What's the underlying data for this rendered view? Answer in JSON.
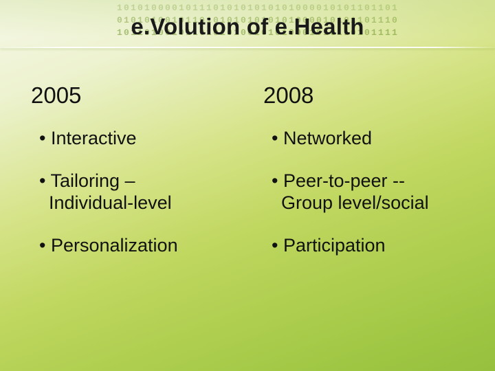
{
  "title": "e.Volution of e.Health",
  "binary": {
    "line1": "10101000010111010101010101000010101101101",
    "line2": "01010100101101010101010101000010101101110",
    "line3": "10110100101101010100101010001010110101111"
  },
  "left": {
    "year": "2005",
    "b1": "Interactive",
    "b2a": "Tailoring –",
    "b2b": "Individual-level",
    "b3": "Personalization"
  },
  "right": {
    "year": "2008",
    "b1": "Networked",
    "b2a": "Peer-to-peer --",
    "b2b": "Group level/social",
    "b3": "Participation"
  },
  "colors": {
    "text": "#111111",
    "bg_top": "#f6f8e8",
    "bg_bottom": "#96c03e"
  }
}
